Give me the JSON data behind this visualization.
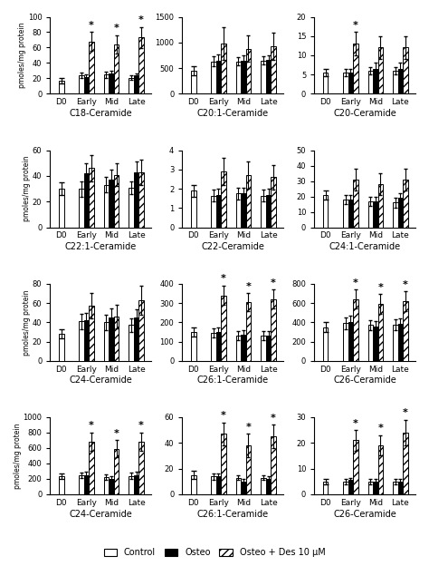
{
  "panels": [
    {
      "title": "C18-Ceramide",
      "ylim": [
        0,
        100
      ],
      "yticks": [
        0,
        20,
        40,
        60,
        80,
        100
      ],
      "control": [
        17,
        24,
        25,
        21
      ],
      "osteo": [
        0,
        22,
        26,
        24
      ],
      "des": [
        0,
        68,
        64,
        73
      ],
      "control_err": [
        3,
        4,
        4,
        3
      ],
      "osteo_err": [
        0,
        3,
        4,
        3
      ],
      "des_err": [
        0,
        12,
        12,
        14
      ],
      "stars": [
        false,
        true,
        true,
        true
      ]
    },
    {
      "title": "C20:1-Ceramide",
      "ylim": [
        0,
        1500
      ],
      "yticks": [
        0,
        500,
        1000,
        1500
      ],
      "control": [
        450,
        630,
        630,
        650
      ],
      "osteo": [
        0,
        650,
        650,
        660
      ],
      "des": [
        0,
        980,
        880,
        930
      ],
      "control_err": [
        80,
        100,
        80,
        80
      ],
      "osteo_err": [
        0,
        120,
        100,
        90
      ],
      "des_err": [
        0,
        310,
        250,
        260
      ],
      "stars": [
        false,
        false,
        false,
        false
      ]
    },
    {
      "title": "C20-Ceramide",
      "ylim": [
        0,
        20
      ],
      "yticks": [
        0,
        5,
        10,
        15,
        20
      ],
      "control": [
        5.5,
        5.5,
        6.0,
        6.0
      ],
      "osteo": [
        0,
        5.5,
        6.5,
        6.5
      ],
      "des": [
        0,
        13,
        12,
        12
      ],
      "control_err": [
        1,
        1,
        1,
        1
      ],
      "osteo_err": [
        0,
        1,
        1.5,
        1.5
      ],
      "des_err": [
        0,
        3,
        3,
        3
      ],
      "stars": [
        false,
        true,
        false,
        false
      ]
    },
    {
      "title": "C22:1-Ceramide",
      "ylim": [
        0,
        60
      ],
      "yticks": [
        0,
        20,
        40,
        60
      ],
      "control": [
        30,
        30,
        33,
        31
      ],
      "osteo": [
        0,
        42,
        37,
        43
      ],
      "des": [
        0,
        46,
        41,
        43
      ],
      "control_err": [
        5,
        6,
        6,
        5
      ],
      "osteo_err": [
        0,
        8,
        8,
        8
      ],
      "des_err": [
        0,
        10,
        9,
        10
      ],
      "stars": [
        false,
        false,
        false,
        false
      ]
    },
    {
      "title": "C22-Ceramide",
      "ylim": [
        0,
        4
      ],
      "yticks": [
        0,
        1,
        2,
        3,
        4
      ],
      "control": [
        1.9,
        1.65,
        1.75,
        1.65
      ],
      "osteo": [
        0,
        1.7,
        1.75,
        1.7
      ],
      "des": [
        0,
        2.9,
        2.7,
        2.6
      ],
      "control_err": [
        0.3,
        0.3,
        0.3,
        0.3
      ],
      "osteo_err": [
        0,
        0.3,
        0.3,
        0.3
      ],
      "des_err": [
        0,
        0.7,
        0.7,
        0.65
      ],
      "stars": [
        false,
        false,
        false,
        false
      ]
    },
    {
      "title": "C24:1-Ceramide",
      "ylim": [
        0,
        50
      ],
      "yticks": [
        0,
        10,
        20,
        30,
        40,
        50
      ],
      "control": [
        21,
        18,
        17,
        16
      ],
      "osteo": [
        0,
        18,
        17,
        19
      ],
      "des": [
        0,
        31,
        28,
        31
      ],
      "control_err": [
        3,
        3,
        3,
        3
      ],
      "osteo_err": [
        0,
        3,
        3,
        3
      ],
      "des_err": [
        0,
        7,
        7,
        7
      ],
      "stars": [
        false,
        false,
        false,
        false
      ]
    },
    {
      "title": "C24-Ceramide",
      "ylim": [
        0,
        80
      ],
      "yticks": [
        0,
        20,
        40,
        60,
        80
      ],
      "control": [
        28,
        41,
        40,
        37
      ],
      "osteo": [
        0,
        42,
        45,
        45
      ],
      "des": [
        0,
        57,
        46,
        63
      ],
      "control_err": [
        5,
        8,
        8,
        7
      ],
      "osteo_err": [
        0,
        8,
        9,
        8
      ],
      "des_err": [
        0,
        13,
        12,
        15
      ],
      "stars": [
        false,
        false,
        false,
        false
      ]
    },
    {
      "title": "C26:1-Ceramide",
      "ylim": [
        0,
        400
      ],
      "yticks": [
        0,
        100,
        200,
        300,
        400
      ],
      "control": [
        150,
        145,
        130,
        130
      ],
      "osteo": [
        0,
        150,
        135,
        130
      ],
      "des": [
        0,
        340,
        305,
        320
      ],
      "control_err": [
        25,
        25,
        22,
        22
      ],
      "osteo_err": [
        0,
        25,
        22,
        22
      ],
      "des_err": [
        0,
        50,
        45,
        50
      ],
      "stars": [
        false,
        true,
        true,
        true
      ]
    },
    {
      "title": "C26-Ceramide",
      "ylim": [
        0,
        800
      ],
      "yticks": [
        0,
        200,
        400,
        600,
        800
      ],
      "control": [
        350,
        390,
        370,
        375
      ],
      "osteo": [
        0,
        405,
        360,
        385
      ],
      "des": [
        0,
        640,
        590,
        620
      ],
      "control_err": [
        50,
        60,
        55,
        55
      ],
      "osteo_err": [
        0,
        65,
        55,
        60
      ],
      "des_err": [
        0,
        100,
        100,
        100
      ],
      "stars": [
        false,
        true,
        true,
        true
      ]
    },
    {
      "title": "C24-Ceramide",
      "ylim": [
        0,
        1000
      ],
      "yticks": [
        0,
        200,
        400,
        600,
        800,
        1000
      ],
      "control": [
        230,
        245,
        220,
        240
      ],
      "osteo": [
        0,
        250,
        195,
        250
      ],
      "des": [
        0,
        680,
        590,
        680
      ],
      "control_err": [
        35,
        40,
        35,
        38
      ],
      "osteo_err": [
        0,
        40,
        35,
        40
      ],
      "des_err": [
        0,
        120,
        110,
        120
      ],
      "stars": [
        false,
        true,
        true,
        true
      ]
    },
    {
      "title": "C26:1-Ceramide",
      "ylim": [
        0,
        60
      ],
      "yticks": [
        0,
        20,
        40,
        60
      ],
      "control": [
        15,
        14,
        13,
        13
      ],
      "osteo": [
        0,
        14,
        10,
        12
      ],
      "des": [
        0,
        47,
        38,
        45
      ],
      "control_err": [
        3,
        2.5,
        2,
        2
      ],
      "osteo_err": [
        0,
        2.5,
        2,
        2
      ],
      "des_err": [
        0,
        9,
        9,
        9
      ],
      "stars": [
        false,
        true,
        true,
        true
      ]
    },
    {
      "title": "C26-Ceramide",
      "ylim": [
        0,
        30
      ],
      "yticks": [
        0,
        10,
        20,
        30
      ],
      "control": [
        5,
        5,
        5,
        5
      ],
      "osteo": [
        0,
        5.5,
        5,
        5
      ],
      "des": [
        0,
        21,
        19,
        24
      ],
      "control_err": [
        1,
        1,
        1,
        1
      ],
      "osteo_err": [
        0,
        1,
        1,
        1
      ],
      "des_err": [
        0,
        4,
        4,
        5
      ],
      "stars": [
        false,
        true,
        true,
        true
      ]
    }
  ],
  "groups": [
    "D0",
    "Early",
    "Mid",
    "Late"
  ],
  "ylabel": "pmoles/mg protein",
  "figsize": [
    4.74,
    6.24
  ],
  "dpi": 100
}
